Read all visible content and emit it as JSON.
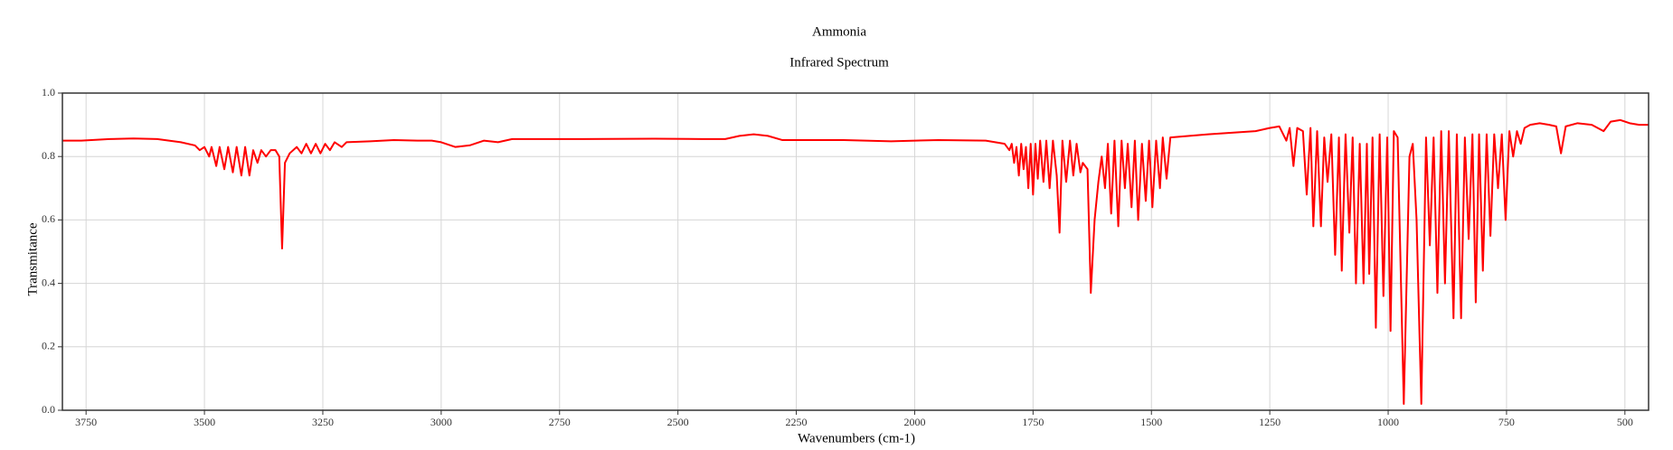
{
  "chart_data": {
    "type": "line",
    "title": "Ammonia",
    "subtitle": "Infrared Spectrum",
    "x_label": "Wavenumbers (cm-1)",
    "y_label": "Transmitance",
    "color": "#ff0000",
    "grid": true,
    "xlim": [
      3800,
      450
    ],
    "ylim": [
      0,
      1
    ],
    "xticks": [
      3750,
      3500,
      3250,
      3000,
      2750,
      2500,
      2250,
      2000,
      1750,
      1500,
      1250,
      1000,
      750,
      500
    ],
    "yticks": [
      {
        "value": 0,
        "label": "0.0"
      },
      0.2,
      0.4,
      0.6,
      0.8,
      {
        "value": 1,
        "label": "1.0"
      }
    ],
    "x": [
      3800,
      3760,
      3700,
      3650,
      3600,
      3550,
      3520,
      3510,
      3500,
      3490,
      3485,
      3475,
      3468,
      3458,
      3450,
      3440,
      3432,
      3422,
      3414,
      3405,
      3397,
      3388,
      3380,
      3370,
      3360,
      3350,
      3342,
      3336,
      3330,
      3320,
      3305,
      3295,
      3285,
      3275,
      3265,
      3255,
      3245,
      3235,
      3225,
      3210,
      3200,
      3150,
      3100,
      3050,
      3020,
      3000,
      2970,
      2940,
      2910,
      2880,
      2850,
      2700,
      2550,
      2450,
      2400,
      2370,
      2340,
      2310,
      2280,
      2150,
      2050,
      1950,
      1850,
      1830,
      1810,
      1800,
      1795,
      1790,
      1785,
      1780,
      1775,
      1770,
      1765,
      1760,
      1755,
      1750,
      1745,
      1740,
      1735,
      1728,
      1722,
      1715,
      1708,
      1700,
      1694,
      1688,
      1680,
      1672,
      1665,
      1658,
      1650,
      1645,
      1635,
      1628,
      1620,
      1612,
      1605,
      1598,
      1592,
      1585,
      1578,
      1570,
      1563,
      1556,
      1550,
      1542,
      1535,
      1528,
      1520,
      1512,
      1505,
      1498,
      1490,
      1482,
      1476,
      1468,
      1460,
      1420,
      1380,
      1330,
      1280,
      1250,
      1230,
      1215,
      1208,
      1200,
      1192,
      1180,
      1172,
      1164,
      1158,
      1150,
      1142,
      1135,
      1128,
      1120,
      1112,
      1104,
      1098,
      1090,
      1082,
      1075,
      1068,
      1060,
      1052,
      1045,
      1040,
      1033,
      1026,
      1018,
      1010,
      1002,
      995,
      988,
      980,
      967,
      955,
      948,
      940,
      930,
      920,
      912,
      904,
      896,
      888,
      880,
      872,
      862,
      855,
      846,
      838,
      830,
      822,
      815,
      808,
      800,
      792,
      784,
      776,
      768,
      760,
      752,
      744,
      736,
      728,
      720,
      712,
      700,
      680,
      660,
      645,
      635,
      625,
      600,
      570,
      545,
      530,
      510,
      490,
      470,
      450
    ],
    "values": [
      0.85,
      0.85,
      0.855,
      0.857,
      0.855,
      0.845,
      0.835,
      0.82,
      0.83,
      0.8,
      0.83,
      0.77,
      0.83,
      0.76,
      0.83,
      0.75,
      0.83,
      0.74,
      0.83,
      0.74,
      0.82,
      0.78,
      0.82,
      0.8,
      0.82,
      0.82,
      0.8,
      0.51,
      0.78,
      0.81,
      0.83,
      0.81,
      0.84,
      0.81,
      0.84,
      0.81,
      0.84,
      0.82,
      0.845,
      0.83,
      0.845,
      0.848,
      0.852,
      0.85,
      0.85,
      0.845,
      0.83,
      0.835,
      0.85,
      0.845,
      0.855,
      0.855,
      0.856,
      0.855,
      0.855,
      0.865,
      0.87,
      0.865,
      0.852,
      0.852,
      0.848,
      0.852,
      0.85,
      0.845,
      0.84,
      0.82,
      0.84,
      0.78,
      0.83,
      0.74,
      0.84,
      0.76,
      0.83,
      0.7,
      0.84,
      0.68,
      0.84,
      0.73,
      0.85,
      0.72,
      0.85,
      0.7,
      0.85,
      0.74,
      0.56,
      0.85,
      0.72,
      0.85,
      0.74,
      0.84,
      0.75,
      0.78,
      0.76,
      0.37,
      0.6,
      0.72,
      0.8,
      0.7,
      0.84,
      0.62,
      0.85,
      0.58,
      0.85,
      0.7,
      0.84,
      0.64,
      0.85,
      0.6,
      0.84,
      0.66,
      0.85,
      0.64,
      0.85,
      0.7,
      0.86,
      0.73,
      0.86,
      0.865,
      0.87,
      0.875,
      0.88,
      0.89,
      0.895,
      0.85,
      0.89,
      0.77,
      0.89,
      0.88,
      0.68,
      0.89,
      0.58,
      0.88,
      0.58,
      0.86,
      0.72,
      0.87,
      0.49,
      0.86,
      0.44,
      0.87,
      0.56,
      0.86,
      0.4,
      0.84,
      0.4,
      0.84,
      0.43,
      0.86,
      0.26,
      0.87,
      0.36,
      0.86,
      0.25,
      0.88,
      0.86,
      0.02,
      0.8,
      0.84,
      0.6,
      0.02,
      0.86,
      0.52,
      0.86,
      0.37,
      0.88,
      0.4,
      0.88,
      0.29,
      0.87,
      0.29,
      0.86,
      0.54,
      0.87,
      0.34,
      0.87,
      0.44,
      0.87,
      0.55,
      0.87,
      0.7,
      0.87,
      0.6,
      0.88,
      0.8,
      0.88,
      0.84,
      0.89,
      0.9,
      0.905,
      0.9,
      0.895,
      0.81,
      0.895,
      0.905,
      0.9,
      0.88,
      0.91,
      0.915,
      0.905,
      0.9,
      0.9
    ]
  }
}
